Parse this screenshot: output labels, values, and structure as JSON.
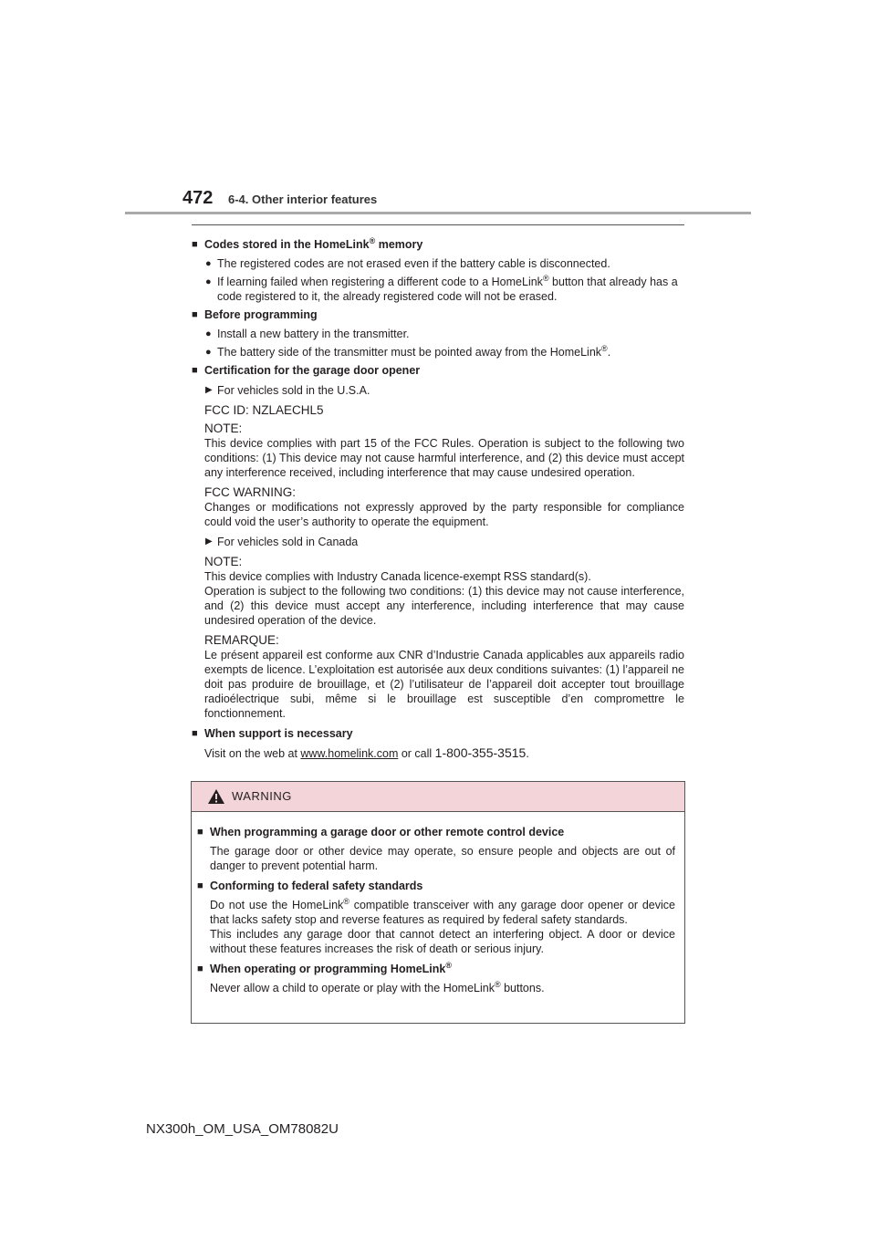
{
  "header": {
    "page_number": "472",
    "section_title": "6-4. Other interior features"
  },
  "s1": {
    "heading_pre": "Codes stored in the HomeLink",
    "heading_post": " memory",
    "b1": "The registered codes are not erased even if the battery cable is disconnected.",
    "b2_pre": "If learning failed when registering a different code to a HomeLink",
    "b2_post": " button that already has a code registered to it, the already registered code will not be erased."
  },
  "s2": {
    "heading": "Before programming",
    "b1": "Install a new battery in the transmitter.",
    "b2_pre": "The battery side of the transmitter must be pointed away from the HomeLink",
    "b2_post": "."
  },
  "s3": {
    "heading": "Certification for the garage door opener",
    "usa_label": "For vehicles sold in the U.S.A.",
    "fcc_id": "FCC ID: NZLAECHL5",
    "note_label": "NOTE:",
    "note_text": "This device complies with part 15 of the FCC Rules. Operation is subject to the following two conditions: (1) This device may not cause harmful interference, and (2) this device must accept any interference received, including interference that may cause undesired operation.",
    "fcc_warning_label": "FCC WARNING:",
    "fcc_warning_text": "Changes or modifications not expressly approved by the party responsible for compliance could void the user’s authority to operate the equipment.",
    "canada_label": "For vehicles sold in Canada",
    "ca_note_label": "NOTE:",
    "ca_note_line1": "This device complies with Industry Canada licence-exempt RSS standard(s).",
    "ca_note_text": "Operation is subject to the following two conditions: (1) this device may not cause interference, and (2) this device must accept any interference, including interference that may cause undesired operation of the device.",
    "remarque_label": "REMARQUE:",
    "remarque_text": "Le présent appareil est conforme aux CNR d’Industrie Canada applicables aux appareils radio exempts de licence. L’exploitation est autorisée aux deux conditions suivantes: (1) l’appareil ne doit pas produire de brouillage, et (2) l’utilisateur de l’appareil doit accepter tout brouillage radioélectrique subi, même si le brouillage est susceptible d’en compromettre le fonctionnement."
  },
  "s4": {
    "heading": "When support is necessary",
    "text_pre": "Visit on the web at ",
    "link": "www.homelink.com",
    "text_mid": " or call ",
    "phone": "1-800-355-3515",
    "text_post": "."
  },
  "warning": {
    "title": "WARNING",
    "h1": "When programming a garage door or other remote control device",
    "p1": "The garage door or other device may operate, so ensure people and objects are out of danger to prevent potential harm.",
    "h2": "Conforming to federal safety standards",
    "p2_pre": "Do not use the HomeLink",
    "p2_post": " compatible transceiver with any garage door opener or device that lacks safety stop and reverse features as required by federal safety standards.",
    "p2b": "This includes any garage door that cannot detect an interfering object. A door or device without these features increases the risk of death or serious injury.",
    "h3": "When operating or programming HomeLink",
    "p3_pre": "Never allow a child to operate or play with the HomeLink",
    "p3_post": " buttons."
  },
  "symbols": {
    "registered": "®"
  },
  "footer": {
    "code": "NX300h_OM_USA_OM78082U"
  }
}
